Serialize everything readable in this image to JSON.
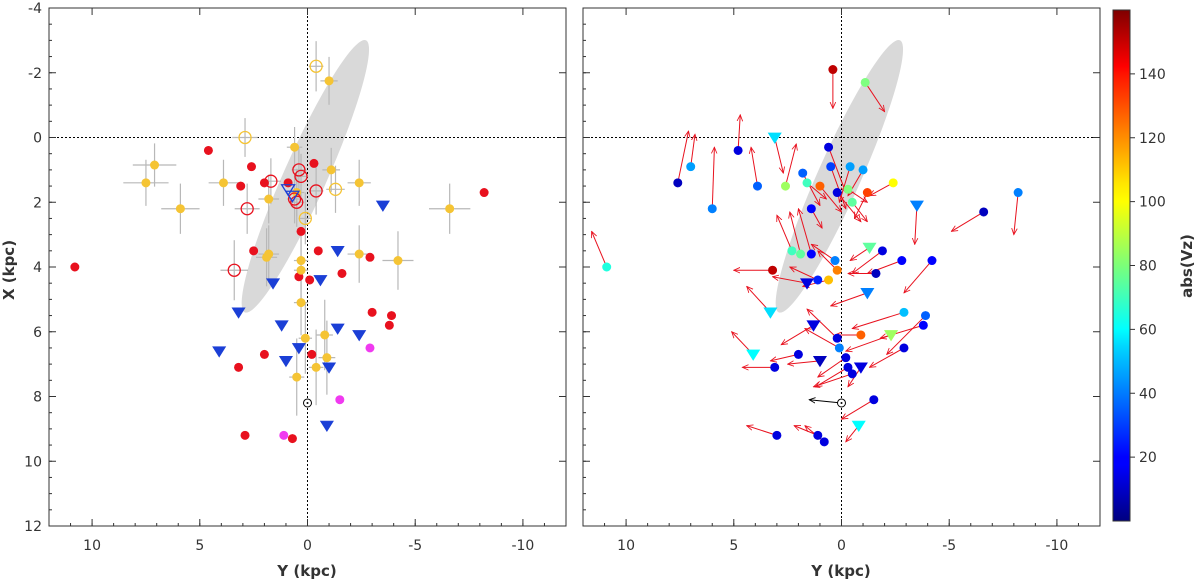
{
  "chart_data": [
    {
      "panel": "left",
      "type": "scatter",
      "xlabel": "Y (kpc)",
      "ylabel": "X (kpc)",
      "xlim": [
        12,
        -12
      ],
      "ylim": [
        -4,
        12
      ],
      "xticks": [
        10,
        5,
        0,
        -5,
        -10
      ],
      "yticks": [
        -4,
        -2,
        0,
        2,
        4,
        6,
        8,
        10,
        12
      ],
      "xtick_labels": [
        "10",
        "5",
        "0",
        "-5",
        "-10"
      ],
      "ytick_labels": [
        "-4",
        "-2",
        "0",
        "2",
        "4",
        "6",
        "8",
        "10",
        "12"
      ],
      "bar_ellipse": {
        "cx": 0.1,
        "cy": 1.2,
        "rx": 1.0,
        "ry": 4.6,
        "angle_deg": 24,
        "color": "#d9d9d9"
      },
      "reference_lines": {
        "x0": 0,
        "y0": 0
      },
      "sun": {
        "x": 0,
        "y": 8.2
      },
      "series": [
        {
          "name": "red-circles",
          "marker": "circle",
          "color": "#e8111e",
          "filled": true,
          "points": [
            [
              10.8,
              4.0
            ],
            [
              4.6,
              0.4
            ],
            [
              3.1,
              1.5
            ],
            [
              2.6,
              0.9
            ],
            [
              2.5,
              3.5
            ],
            [
              2.0,
              1.4
            ],
            [
              0.9,
              1.4
            ],
            [
              0.3,
              2.9
            ],
            [
              -0.3,
              0.8
            ],
            [
              0.4,
              4.3
            ],
            [
              -0.1,
              4.4
            ],
            [
              -0.5,
              3.5
            ],
            [
              -1.6,
              4.2
            ],
            [
              -2.9,
              3.7
            ],
            [
              -3.0,
              5.4
            ],
            [
              -3.9,
              5.5
            ],
            [
              -3.8,
              5.8
            ],
            [
              2.0,
              6.7
            ],
            [
              3.2,
              7.1
            ],
            [
              -0.2,
              6.7
            ],
            [
              2.9,
              9.2
            ],
            [
              0.7,
              9.3
            ],
            [
              -8.2,
              1.7
            ]
          ]
        },
        {
          "name": "yellow-circles",
          "marker": "circle",
          "color": "#f5c434",
          "filled": true,
          "points": [
            [
              7.5,
              1.4
            ],
            [
              7.1,
              0.85
            ],
            [
              5.9,
              2.2
            ],
            [
              3.9,
              1.4
            ],
            [
              1.8,
              1.9
            ],
            [
              1.8,
              3.6
            ],
            [
              1.9,
              3.7
            ],
            [
              0.6,
              0.3
            ],
            [
              0.5,
              1.7
            ],
            [
              0.3,
              3.8
            ],
            [
              0.3,
              4.1
            ],
            [
              0.3,
              5.1
            ],
            [
              0.1,
              6.2
            ],
            [
              -0.8,
              6.1
            ],
            [
              -0.9,
              6.8
            ],
            [
              -0.4,
              7.1
            ],
            [
              0.5,
              7.4
            ],
            [
              -1.0,
              -1.75
            ],
            [
              -1.1,
              1.0
            ],
            [
              -2.4,
              1.4
            ],
            [
              -2.4,
              3.6
            ],
            [
              -4.2,
              3.8
            ],
            [
              -6.6,
              2.2
            ]
          ]
        },
        {
          "name": "yellow-open-circles",
          "marker": "circle",
          "color": "#f5c434",
          "filled": false,
          "points": [
            [
              2.9,
              0.0
            ],
            [
              -0.4,
              -2.2
            ],
            [
              -1.3,
              1.6
            ],
            [
              0.1,
              2.5
            ]
          ]
        },
        {
          "name": "red-open-circles",
          "marker": "circle",
          "color": "#e8111e",
          "filled": false,
          "points": [
            [
              1.7,
              1.35
            ],
            [
              0.4,
              1.0
            ],
            [
              0.3,
              1.2
            ],
            [
              0.6,
              1.9
            ],
            [
              0.5,
              2.0
            ],
            [
              -0.4,
              1.65
            ],
            [
              2.8,
              2.2
            ],
            [
              3.4,
              4.1
            ]
          ]
        },
        {
          "name": "blue-triangles",
          "marker": "triangle",
          "color": "#1b3fd6",
          "filled": true,
          "points": [
            [
              -3.5,
              2.1
            ],
            [
              -1.4,
              3.5
            ],
            [
              1.6,
              4.5
            ],
            [
              -0.6,
              4.4
            ],
            [
              3.2,
              5.4
            ],
            [
              1.2,
              5.8
            ],
            [
              -1.4,
              5.9
            ],
            [
              -2.4,
              6.1
            ],
            [
              4.1,
              6.6
            ],
            [
              0.4,
              6.5
            ],
            [
              1.0,
              6.9
            ],
            [
              -1.0,
              7.1
            ],
            [
              -0.9,
              8.9
            ]
          ]
        },
        {
          "name": "blue-open-triangles",
          "marker": "triangle",
          "color": "#1b3fd6",
          "filled": false,
          "points": [
            [
              0.9,
              1.6
            ],
            [
              0.7,
              1.8
            ]
          ]
        },
        {
          "name": "magenta-circles",
          "marker": "circle",
          "color": "#f03af0",
          "filled": true,
          "points": [
            [
              -2.9,
              6.5
            ],
            [
              -1.5,
              8.1
            ],
            [
              1.1,
              9.2
            ]
          ]
        }
      ]
    },
    {
      "panel": "right",
      "type": "scatter",
      "xlabel": "Y (kpc)",
      "ylabel": "",
      "xlim": [
        12,
        -12
      ],
      "ylim": [
        -4,
        12
      ],
      "xticks": [
        10,
        5,
        0,
        -5,
        -10
      ],
      "yticks": [
        -4,
        -2,
        0,
        2,
        4,
        6,
        8,
        10,
        12
      ],
      "xtick_labels": [
        "10",
        "5",
        "0",
        "-5",
        "-10"
      ],
      "bar_ellipse": {
        "cx": 0.1,
        "cy": 1.2,
        "rx": 1.0,
        "ry": 4.6,
        "angle_deg": 24,
        "color": "#d9d9d9"
      },
      "reference_lines": {
        "x0": 0,
        "y0": 0
      },
      "sun": {
        "x": 0,
        "y": 8.2,
        "arrow_to": [
          1.5,
          8.1
        ],
        "arrow_color": "#000000"
      },
      "arrow_color": "#e8111e",
      "colorbar": {
        "label": "abs(Vz)",
        "range": [
          0,
          160
        ],
        "ticks": [
          20,
          40,
          60,
          80,
          100,
          120,
          140
        ],
        "tick_labels": [
          "20",
          "40",
          "60",
          "80",
          "100",
          "120",
          "140"
        ]
      },
      "points": [
        {
          "x": 0.4,
          "y": -2.1,
          "vz": 150,
          "m": "c",
          "dx": 0.0,
          "dy": 1.2
        },
        {
          "x": -1.1,
          "y": -1.7,
          "vz": 80,
          "m": "c",
          "dx": -0.9,
          "dy": 0.9
        },
        {
          "x": 10.9,
          "y": 4.0,
          "vz": 65,
          "m": "c",
          "dx": 0.7,
          "dy": -1.1
        },
        {
          "x": 7.6,
          "y": 1.4,
          "vz": 10,
          "m": "c",
          "dx": -0.5,
          "dy": -1.6
        },
        {
          "x": 7.0,
          "y": 0.9,
          "vz": 45,
          "m": "c",
          "dx": -0.2,
          "dy": -1.0
        },
        {
          "x": 6.0,
          "y": 2.2,
          "vz": 40,
          "m": "c",
          "dx": -0.1,
          "dy": -1.9
        },
        {
          "x": 4.8,
          "y": 0.4,
          "vz": 15,
          "m": "c",
          "dx": -0.1,
          "dy": -1.1
        },
        {
          "x": 3.9,
          "y": 1.5,
          "vz": 35,
          "m": "c",
          "dx": 0.3,
          "dy": -1.2
        },
        {
          "x": 3.1,
          "y": 0.0,
          "vz": 55,
          "m": "t",
          "dx": -0.4,
          "dy": 1.1
        },
        {
          "x": 2.6,
          "y": 1.5,
          "vz": 85,
          "m": "c",
          "dx": -0.5,
          "dy": -1.3
        },
        {
          "x": 1.8,
          "y": 1.1,
          "vz": 35,
          "m": "c",
          "dx": -0.8,
          "dy": 1.0
        },
        {
          "x": 1.6,
          "y": 1.4,
          "vz": 70,
          "m": "c",
          "dx": -0.9,
          "dy": 0.5
        },
        {
          "x": 1.4,
          "y": 2.2,
          "vz": 20,
          "m": "c",
          "dx": -0.5,
          "dy": 0.6
        },
        {
          "x": 0.6,
          "y": 0.3,
          "vz": 15,
          "m": "c",
          "dx": -0.8,
          "dy": 1.4
        },
        {
          "x": 0.5,
          "y": 0.9,
          "vz": 30,
          "m": "c",
          "dx": -0.7,
          "dy": 1.3
        },
        {
          "x": 1.0,
          "y": 1.5,
          "vz": 125,
          "m": "c",
          "dx": -1.0,
          "dy": 0.8
        },
        {
          "x": 0.2,
          "y": 1.7,
          "vz": 15,
          "m": "c",
          "dx": -1.1,
          "dy": 0.9
        },
        {
          "x": -0.4,
          "y": 0.9,
          "vz": 45,
          "m": "c",
          "dx": 0.5,
          "dy": 1.1
        },
        {
          "x": -1.0,
          "y": 1.0,
          "vz": 45,
          "m": "c",
          "dx": 0.7,
          "dy": 0.8
        },
        {
          "x": -0.3,
          "y": 1.6,
          "vz": 80,
          "m": "c",
          "dx": -0.9,
          "dy": 0.4
        },
        {
          "x": -0.5,
          "y": 2.0,
          "vz": 75,
          "m": "c",
          "dx": -0.7,
          "dy": 0.6
        },
        {
          "x": -1.2,
          "y": 1.7,
          "vz": 130,
          "m": "c",
          "dx": 0.6,
          "dy": 0.8
        },
        {
          "x": -2.4,
          "y": 1.4,
          "vz": 100,
          "m": "c",
          "dx": 1.1,
          "dy": 0.4
        },
        {
          "x": -3.5,
          "y": 2.1,
          "vz": 40,
          "m": "t",
          "dx": 0.1,
          "dy": 1.2
        },
        {
          "x": -6.6,
          "y": 2.3,
          "vz": 10,
          "m": "c",
          "dx": 1.5,
          "dy": 0.6
        },
        {
          "x": -8.2,
          "y": 1.7,
          "vz": 40,
          "m": "c",
          "dx": 0.2,
          "dy": 1.3
        },
        {
          "x": 2.3,
          "y": 3.5,
          "vz": 70,
          "m": "c",
          "dx": 0.7,
          "dy": -1.1
        },
        {
          "x": 1.9,
          "y": 3.6,
          "vz": 75,
          "m": "c",
          "dx": 0.5,
          "dy": -1.3
        },
        {
          "x": 1.4,
          "y": 3.6,
          "vz": 20,
          "m": "c",
          "dx": 0.6,
          "dy": -1.4
        },
        {
          "x": 0.3,
          "y": 3.8,
          "vz": 40,
          "m": "c",
          "dx": 1.1,
          "dy": -0.5
        },
        {
          "x": 0.2,
          "y": 4.1,
          "vz": 120,
          "m": "c",
          "dx": 0.9,
          "dy": -0.6
        },
        {
          "x": -1.3,
          "y": 3.4,
          "vz": 75,
          "m": "t",
          "dx": 0.9,
          "dy": 0.4
        },
        {
          "x": -1.9,
          "y": 3.5,
          "vz": 15,
          "m": "c",
          "dx": 1.4,
          "dy": 0.7
        },
        {
          "x": -2.8,
          "y": 3.8,
          "vz": 20,
          "m": "c",
          "dx": 1.6,
          "dy": 0.4
        },
        {
          "x": -4.2,
          "y": 3.8,
          "vz": 20,
          "m": "c",
          "dx": 1.3,
          "dy": 1.0
        },
        {
          "x": -1.6,
          "y": 4.2,
          "vz": 10,
          "m": "c",
          "dx": 1.3,
          "dy": 0.0
        },
        {
          "x": 3.2,
          "y": 4.1,
          "vz": 150,
          "m": "c",
          "dx": 1.8,
          "dy": 0.0
        },
        {
          "x": 1.6,
          "y": 4.5,
          "vz": 15,
          "m": "t",
          "dx": 1.6,
          "dy": -0.2
        },
        {
          "x": 1.1,
          "y": 4.4,
          "vz": 25,
          "m": "c",
          "dx": 1.3,
          "dy": -0.4
        },
        {
          "x": 0.6,
          "y": 4.4,
          "vz": 110,
          "m": "c",
          "dx": 1.2,
          "dy": 0.2
        },
        {
          "x": 3.3,
          "y": 5.4,
          "vz": 55,
          "m": "t",
          "dx": 1.1,
          "dy": -0.8
        },
        {
          "x": 1.3,
          "y": 5.8,
          "vz": 15,
          "m": "t",
          "dx": 1.5,
          "dy": 0.6
        },
        {
          "x": -1.2,
          "y": 4.8,
          "vz": 40,
          "m": "t",
          "dx": 1.7,
          "dy": 0.4
        },
        {
          "x": -2.9,
          "y": 5.4,
          "vz": 50,
          "m": "c",
          "dx": 2.4,
          "dy": 0.5
        },
        {
          "x": -3.9,
          "y": 5.5,
          "vz": 35,
          "m": "c",
          "dx": 1.8,
          "dy": 1.2
        },
        {
          "x": -0.9,
          "y": 6.1,
          "vz": 125,
          "m": "c",
          "dx": 1.2,
          "dy": 0.0
        },
        {
          "x": -2.3,
          "y": 6.1,
          "vz": 85,
          "m": "t",
          "dx": 2.1,
          "dy": 0.5
        },
        {
          "x": -3.8,
          "y": 5.8,
          "vz": 20,
          "m": "c",
          "dx": 2.0,
          "dy": 0.4
        },
        {
          "x": -2.9,
          "y": 6.5,
          "vz": 15,
          "m": "c",
          "dx": 1.6,
          "dy": 0.6
        },
        {
          "x": 4.1,
          "y": 6.7,
          "vz": 60,
          "m": "t",
          "dx": 1.0,
          "dy": -0.7
        },
        {
          "x": 2.0,
          "y": 6.7,
          "vz": 15,
          "m": "c",
          "dx": 1.3,
          "dy": 0.2
        },
        {
          "x": 1.0,
          "y": 6.9,
          "vz": 10,
          "m": "t",
          "dx": 1.5,
          "dy": 0.1
        },
        {
          "x": 0.1,
          "y": 6.5,
          "vz": 40,
          "m": "c",
          "dx": 1.6,
          "dy": -0.6
        },
        {
          "x": 0.2,
          "y": 6.2,
          "vz": 15,
          "m": "c",
          "dx": 1.4,
          "dy": -0.9
        },
        {
          "x": -0.2,
          "y": 6.8,
          "vz": 15,
          "m": "c",
          "dx": 1.3,
          "dy": 0.6
        },
        {
          "x": -0.3,
          "y": 7.1,
          "vz": 15,
          "m": "c",
          "dx": 1.5,
          "dy": 0.6
        },
        {
          "x": -0.9,
          "y": 7.1,
          "vz": 15,
          "m": "t",
          "dx": 0.6,
          "dy": 0.6
        },
        {
          "x": -0.5,
          "y": 7.3,
          "vz": 15,
          "m": "c",
          "dx": 1.8,
          "dy": 0.4
        },
        {
          "x": 3.1,
          "y": 7.1,
          "vz": 15,
          "m": "c",
          "dx": 1.5,
          "dy": 0.0
        },
        {
          "x": -1.5,
          "y": 8.1,
          "vz": 15,
          "m": "c",
          "dx": 1.5,
          "dy": 0.6
        },
        {
          "x": -0.8,
          "y": 8.9,
          "vz": 60,
          "m": "t",
          "dx": 0.6,
          "dy": 0.5
        },
        {
          "x": 3.0,
          "y": 9.2,
          "vz": 15,
          "m": "c",
          "dx": 1.4,
          "dy": -0.3
        },
        {
          "x": 1.1,
          "y": 9.2,
          "vz": 15,
          "m": "c",
          "dx": 1.1,
          "dy": -0.3
        },
        {
          "x": 0.8,
          "y": 9.4,
          "vz": 15,
          "m": "c",
          "dx": 0.9,
          "dy": -0.5
        }
      ]
    }
  ]
}
